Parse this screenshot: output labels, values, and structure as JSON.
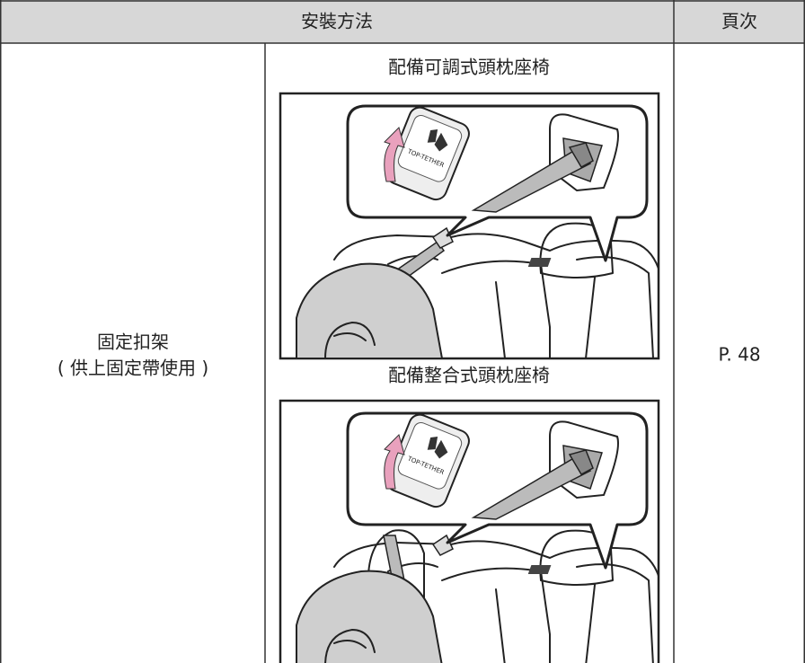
{
  "table": {
    "header": [
      "安裝方法",
      "頁次"
    ],
    "rows": [
      {
        "method": [
          "固定扣架",
          "( 供上固定帶使用 )"
        ],
        "options": [
          {
            "caption": "配備可調式頭枕座椅",
            "figure_label": "TOP-TETHER"
          },
          {
            "caption": "配備整合式頭枕座椅",
            "figure_label": "TOP-TETHER"
          }
        ],
        "page": "P. 48"
      }
    ]
  }
}
